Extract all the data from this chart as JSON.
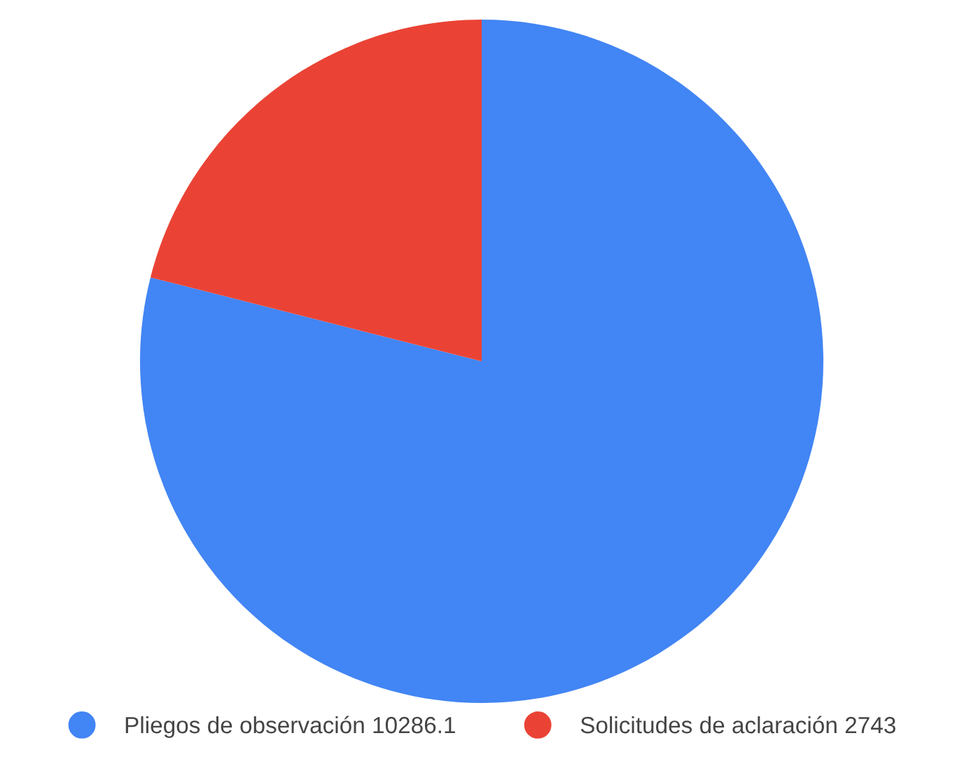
{
  "chart_data": {
    "type": "pie",
    "categories": [
      "Pliegos de observación 10286.1",
      "Solicitudes de aclaración 2743"
    ],
    "values": [
      10286.1,
      2743
    ],
    "colors": [
      "#4285f4",
      "#ea4335"
    ],
    "legend": "bottom"
  }
}
